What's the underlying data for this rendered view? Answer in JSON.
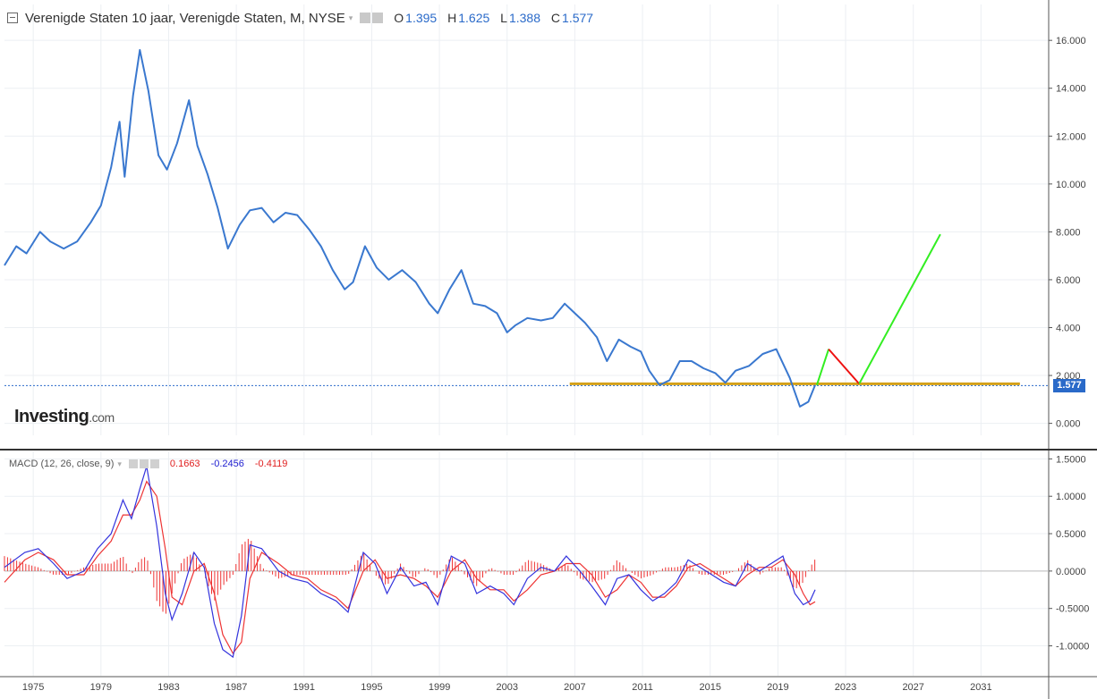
{
  "header": {
    "title": "Verenigde Staten 10 jaar, Verenigde Staten, M, NYSE",
    "dropdown_glyph": "▾",
    "ohlc": [
      {
        "key": "O",
        "value": "1.395"
      },
      {
        "key": "H",
        "value": "1.625"
      },
      {
        "key": "L",
        "value": "1.388"
      },
      {
        "key": "C",
        "value": "1.577"
      }
    ]
  },
  "logo": {
    "main": "Investing",
    "suffix": ".com"
  },
  "last_price": "1.577",
  "macd": {
    "label": "MACD (12, 26, close, 9)",
    "values": [
      "0.1663",
      "-0.2456",
      "-0.4119"
    ]
  },
  "colors": {
    "price_line": "#3a78cf",
    "macd_line": "#3333dd",
    "signal_line": "#ee3333",
    "histogram": "#ee3333",
    "support": "#d4a017",
    "projection_up": "#33ee22",
    "projection_down": "#ee1111",
    "price_badge": "#2a6ac9"
  },
  "chart_data": [
    {
      "type": "line",
      "title": "Verenigde Staten 10 jaar, Verenigde Staten, M, NYSE",
      "ylim": [
        -0.5,
        17.5
      ],
      "yticks": [
        "16.000",
        "14.000",
        "12.000",
        "10.000",
        "8.000",
        "6.000",
        "4.000",
        "2.000",
        "0.000"
      ],
      "ytick_values": [
        16,
        14,
        12,
        10,
        8,
        6,
        4,
        2,
        0
      ],
      "xticks": [
        "1975",
        "1979",
        "1983",
        "1987",
        "1991",
        "1995",
        "1999",
        "2003",
        "2007",
        "2011",
        "2015",
        "2019",
        "2023",
        "2027",
        "2031"
      ],
      "xlim": [
        1973.3,
        2035.0
      ],
      "grid": true,
      "series": [
        {
          "x": [
            1973.3,
            1974.0,
            1974.6,
            1975.4,
            1976.0,
            1976.8,
            1977.6,
            1978.4,
            1979.0,
            1979.6,
            1980.1,
            1980.4,
            1980.9,
            1981.3,
            1981.8,
            1982.4,
            1982.9,
            1983.5,
            1984.2,
            1984.7,
            1985.3,
            1985.9,
            1986.5,
            1987.2,
            1987.8,
            1988.5,
            1989.2,
            1989.9,
            1990.6,
            1991.3,
            1992.0,
            1992.7,
            1993.4,
            1993.9,
            1994.6,
            1995.3,
            1996.0,
            1996.8,
            1997.6,
            1998.4,
            1998.9,
            1999.6,
            2000.3,
            2001.0,
            2001.7,
            2002.4,
            2003.0,
            2003.5,
            2004.2,
            2005.0,
            2005.7,
            2006.4,
            2007.0,
            2007.6,
            2008.3,
            2008.9,
            2009.6,
            2010.3,
            2010.9,
            2011.4,
            2012.0,
            2012.6,
            2013.2,
            2013.9,
            2014.6,
            2015.3,
            2015.9,
            2016.5,
            2017.3,
            2018.1,
            2018.9,
            2019.7,
            2020.3,
            2020.8,
            2021.2
          ],
          "values": [
            6.6,
            7.4,
            7.1,
            8.0,
            7.6,
            7.3,
            7.6,
            8.4,
            9.1,
            10.7,
            12.6,
            10.3,
            13.7,
            15.6,
            13.9,
            11.2,
            10.6,
            11.7,
            13.5,
            11.6,
            10.4,
            9.0,
            7.3,
            8.3,
            8.9,
            9.0,
            8.4,
            8.8,
            8.7,
            8.1,
            7.4,
            6.4,
            5.6,
            5.9,
            7.4,
            6.5,
            6.0,
            6.4,
            5.9,
            5.0,
            4.6,
            5.6,
            6.4,
            5.0,
            4.9,
            4.6,
            3.8,
            4.1,
            4.4,
            4.3,
            4.4,
            5.0,
            4.6,
            4.2,
            3.6,
            2.6,
            3.5,
            3.2,
            3.0,
            2.2,
            1.6,
            1.8,
            2.6,
            2.6,
            2.3,
            2.1,
            1.7,
            2.2,
            2.4,
            2.9,
            3.1,
            1.9,
            0.7,
            0.9,
            1.6
          ]
        }
      ],
      "support_line": {
        "y": 1.65,
        "x_start": 2006.7,
        "x_end": 2033.3
      },
      "projection": {
        "up1": {
          "x": [
            2021.3,
            2022.0
          ],
          "values": [
            1.6,
            3.1
          ]
        },
        "down": {
          "x": [
            2022.0,
            2023.8
          ],
          "values": [
            3.1,
            1.65
          ]
        },
        "up2": {
          "x": [
            2023.8,
            2028.6
          ],
          "values": [
            1.65,
            7.9
          ]
        }
      },
      "last_value": 1.577
    },
    {
      "type": "line",
      "title": "MACD (12, 26, close, 9)",
      "ylim": [
        -1.4,
        1.6
      ],
      "yticks": [
        "1.5000",
        "1.0000",
        "0.5000",
        "0.0000",
        "-0.5000",
        "-1.0000"
      ],
      "ytick_values": [
        1.5,
        1.0,
        0.5,
        0.0,
        -0.5,
        -1.0
      ],
      "series": [
        {
          "name": "MACD",
          "x": [
            1973.3,
            1974.5,
            1975.3,
            1976.2,
            1977.0,
            1978.0,
            1978.8,
            1979.6,
            1980.3,
            1980.8,
            1981.3,
            1981.7,
            1982.3,
            1982.8,
            1983.2,
            1983.8,
            1984.5,
            1985.1,
            1985.7,
            1986.2,
            1986.8,
            1987.3,
            1987.8,
            1988.5,
            1989.5,
            1990.3,
            1991.2,
            1992.0,
            1992.9,
            1993.6,
            1994.5,
            1995.2,
            1995.9,
            1996.7,
            1997.5,
            1998.2,
            1998.9,
            1999.7,
            2000.5,
            2001.2,
            2002.0,
            2002.8,
            2003.4,
            2004.2,
            2005.0,
            2005.8,
            2006.5,
            2007.3,
            2008.0,
            2008.8,
            2009.5,
            2010.2,
            2010.9,
            2011.6,
            2012.3,
            2013.0,
            2013.7,
            2014.4,
            2015.1,
            2015.8,
            2016.5,
            2017.2,
            2017.9,
            2018.6,
            2019.3,
            2020.0,
            2020.5,
            2020.9,
            2021.2
          ],
          "values": [
            0.05,
            0.25,
            0.3,
            0.1,
            -0.1,
            0.0,
            0.3,
            0.5,
            0.95,
            0.7,
            1.1,
            1.4,
            0.6,
            -0.3,
            -0.65,
            -0.3,
            0.25,
            0.05,
            -0.7,
            -1.05,
            -1.15,
            -0.6,
            0.35,
            0.3,
            0.0,
            -0.1,
            -0.15,
            -0.3,
            -0.4,
            -0.55,
            0.25,
            0.1,
            -0.3,
            0.05,
            -0.2,
            -0.15,
            -0.45,
            0.2,
            0.1,
            -0.3,
            -0.2,
            -0.3,
            -0.45,
            -0.1,
            0.05,
            0.0,
            0.2,
            0.0,
            -0.2,
            -0.45,
            -0.1,
            -0.05,
            -0.25,
            -0.4,
            -0.3,
            -0.15,
            0.15,
            0.05,
            -0.05,
            -0.15,
            -0.2,
            0.1,
            0.0,
            0.1,
            0.2,
            -0.3,
            -0.45,
            -0.4,
            -0.25
          ]
        },
        {
          "name": "Signal",
          "x": [
            1973.3,
            1974.5,
            1975.3,
            1976.2,
            1977.0,
            1978.0,
            1978.8,
            1979.6,
            1980.3,
            1980.8,
            1981.3,
            1981.7,
            1982.3,
            1982.8,
            1983.2,
            1983.8,
            1984.5,
            1985.1,
            1985.7,
            1986.2,
            1986.8,
            1987.3,
            1987.8,
            1988.5,
            1989.5,
            1990.3,
            1991.2,
            1992.0,
            1992.9,
            1993.6,
            1994.5,
            1995.2,
            1995.9,
            1996.7,
            1997.5,
            1998.2,
            1998.9,
            1999.7,
            2000.5,
            2001.2,
            2002.0,
            2002.8,
            2003.4,
            2004.2,
            2005.0,
            2005.8,
            2006.5,
            2007.3,
            2008.0,
            2008.8,
            2009.5,
            2010.2,
            2010.9,
            2011.6,
            2012.3,
            2013.0,
            2013.7,
            2014.4,
            2015.1,
            2015.8,
            2016.5,
            2017.2,
            2017.9,
            2018.6,
            2019.3,
            2020.0,
            2020.5,
            2020.9,
            2021.2
          ],
          "values": [
            -0.15,
            0.15,
            0.25,
            0.15,
            -0.05,
            -0.05,
            0.2,
            0.4,
            0.75,
            0.75,
            0.95,
            1.2,
            1.0,
            0.3,
            -0.35,
            -0.45,
            0.0,
            0.1,
            -0.3,
            -0.85,
            -1.1,
            -0.95,
            -0.1,
            0.25,
            0.1,
            -0.05,
            -0.1,
            -0.25,
            -0.35,
            -0.5,
            0.0,
            0.15,
            -0.1,
            -0.05,
            -0.1,
            -0.2,
            -0.35,
            0.0,
            0.15,
            -0.1,
            -0.25,
            -0.25,
            -0.4,
            -0.25,
            -0.05,
            0.0,
            0.1,
            0.1,
            -0.05,
            -0.35,
            -0.25,
            -0.05,
            -0.15,
            -0.35,
            -0.35,
            -0.2,
            0.05,
            0.1,
            0.0,
            -0.1,
            -0.2,
            -0.05,
            0.05,
            0.05,
            0.15,
            -0.05,
            -0.3,
            -0.45,
            -0.41
          ]
        }
      ],
      "last_values": {
        "histogram": 0.1663,
        "macd": -0.2456,
        "signal": -0.4119
      }
    }
  ]
}
